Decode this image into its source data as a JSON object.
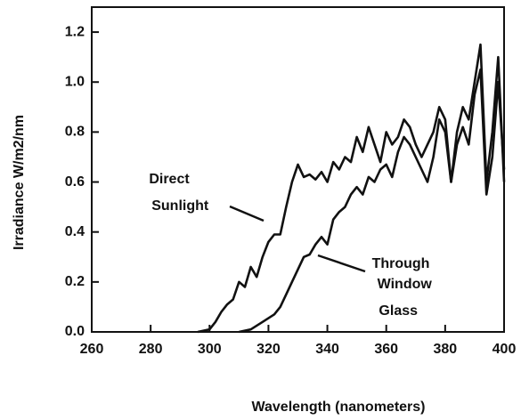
{
  "chart_data": {
    "type": "line",
    "xlabel": "Wavelength (nanometers)",
    "ylabel": "Irradiance  W/m2/nm",
    "xlim": [
      260,
      400
    ],
    "xticks": [
      260,
      280,
      300,
      320,
      340,
      360,
      380,
      400
    ],
    "ylim": [
      0,
      1.3
    ],
    "yticks": [
      {
        "value": 0,
        "label": "0.0"
      },
      0.2,
      0.4,
      0.6,
      0.8,
      {
        "value": 1,
        "label": "1.0"
      },
      1.2
    ],
    "series": [
      {
        "name": "Direct Sunlight",
        "color": "#111111",
        "x": [
          296,
          300,
          302,
          304,
          306,
          308,
          310,
          312,
          314,
          316,
          318,
          320,
          322,
          324,
          326,
          328,
          330,
          332,
          334,
          336,
          338,
          340,
          342,
          344,
          346,
          348,
          350,
          352,
          354,
          356,
          358,
          360,
          362,
          364,
          366,
          368,
          370,
          372,
          374,
          376,
          378,
          380,
          382,
          384,
          386,
          388,
          390,
          392,
          394,
          396,
          398,
          400
        ],
        "values": [
          0,
          0.01,
          0.04,
          0.08,
          0.11,
          0.13,
          0.2,
          0.18,
          0.26,
          0.22,
          0.3,
          0.36,
          0.39,
          0.39,
          0.5,
          0.6,
          0.67,
          0.62,
          0.63,
          0.61,
          0.64,
          0.6,
          0.68,
          0.65,
          0.7,
          0.68,
          0.78,
          0.72,
          0.82,
          0.75,
          0.68,
          0.8,
          0.75,
          0.78,
          0.85,
          0.82,
          0.75,
          0.7,
          0.75,
          0.8,
          0.9,
          0.85,
          0.6,
          0.8,
          0.9,
          0.85,
          1.0,
          1.15,
          0.6,
          0.8,
          1.1,
          0.6
        ]
      },
      {
        "name": "Through Window Glass",
        "color": "#111111",
        "x": [
          310,
          314,
          318,
          322,
          324,
          326,
          328,
          330,
          332,
          334,
          336,
          338,
          340,
          342,
          344,
          346,
          348,
          350,
          352,
          354,
          356,
          358,
          360,
          362,
          364,
          366,
          368,
          370,
          372,
          374,
          376,
          378,
          380,
          382,
          384,
          386,
          388,
          390,
          392,
          394,
          396,
          398,
          400
        ],
        "values": [
          0,
          0.01,
          0.04,
          0.07,
          0.1,
          0.15,
          0.2,
          0.25,
          0.3,
          0.31,
          0.35,
          0.38,
          0.35,
          0.45,
          0.48,
          0.5,
          0.55,
          0.58,
          0.55,
          0.62,
          0.6,
          0.65,
          0.67,
          0.62,
          0.72,
          0.78,
          0.75,
          0.7,
          0.65,
          0.6,
          0.7,
          0.85,
          0.8,
          0.6,
          0.75,
          0.82,
          0.75,
          0.95,
          1.05,
          0.55,
          0.7,
          1.0,
          0.65
        ]
      }
    ]
  }
}
